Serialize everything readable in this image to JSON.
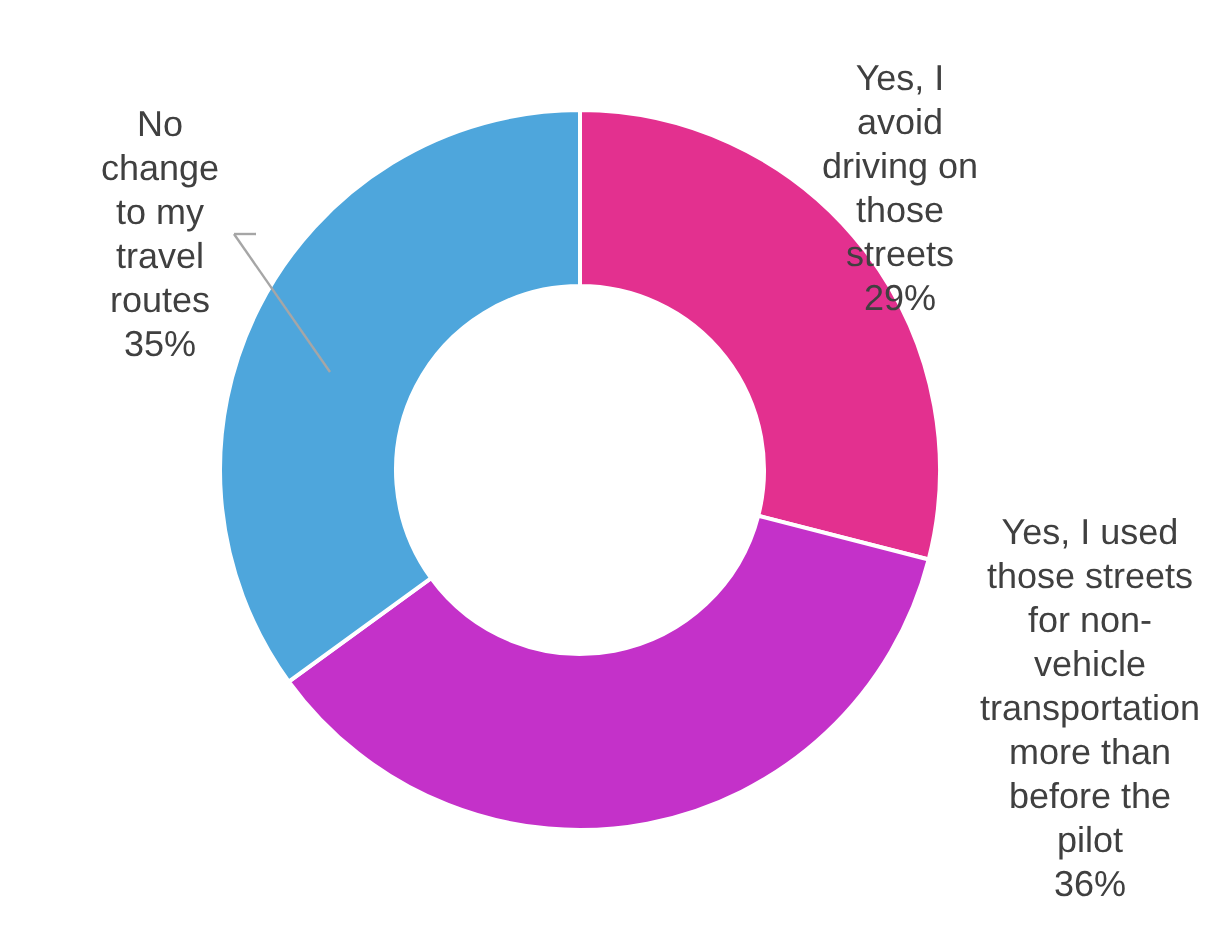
{
  "chart_data": {
    "type": "donut",
    "categories": [
      "Yes, I avoid driving on those streets",
      "Yes, I used those streets for non-vehicle transportation more than before the pilot",
      "No change to my travel routes"
    ],
    "values": [
      29,
      36,
      35
    ],
    "colors": [
      "#e3308f",
      "#c431c9",
      "#4ea6dc"
    ],
    "value_labels": [
      "29%",
      "36%",
      "35%"
    ]
  }
}
